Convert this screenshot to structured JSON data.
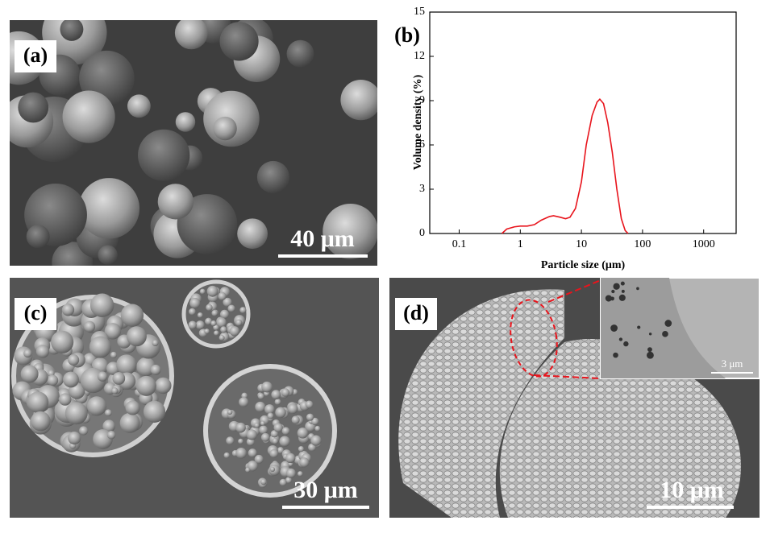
{
  "panels": [
    {
      "label": "(a)",
      "scale_bar": "40 μm"
    },
    {
      "label": "(c)",
      "scale_bar": "30 μm"
    },
    {
      "label": "(d)",
      "scale_bar": "10 μm",
      "inset_scale_bar": "3 μm"
    }
  ],
  "chart_data": {
    "type": "line",
    "panel_label": "(b)",
    "x_label": "Particle size (μm)",
    "y_label": "Volume density (%)",
    "x": [
      0.5,
      0.6,
      0.8,
      1.0,
      1.3,
      1.7,
      2.2,
      3,
      3.5,
      4.5,
      5.5,
      6.5,
      8,
      10,
      12,
      15,
      18,
      20,
      23,
      27,
      32,
      38,
      45,
      52,
      58
    ],
    "values": [
      0,
      0.3,
      0.45,
      0.5,
      0.5,
      0.6,
      0.9,
      1.15,
      1.2,
      1.1,
      1.0,
      1.1,
      1.7,
      3.5,
      6,
      8,
      8.9,
      9.1,
      8.8,
      7.5,
      5.5,
      3.0,
      1.0,
      0.2,
      0
    ],
    "color": "#e8141c",
    "log_x": true,
    "xlim": [
      0.033,
      3400
    ],
    "xticks": [
      0.1,
      1,
      10,
      100,
      1000
    ],
    "ylim": [
      0,
      15
    ],
    "yticks": [
      0,
      3,
      6,
      9,
      12,
      15
    ]
  }
}
